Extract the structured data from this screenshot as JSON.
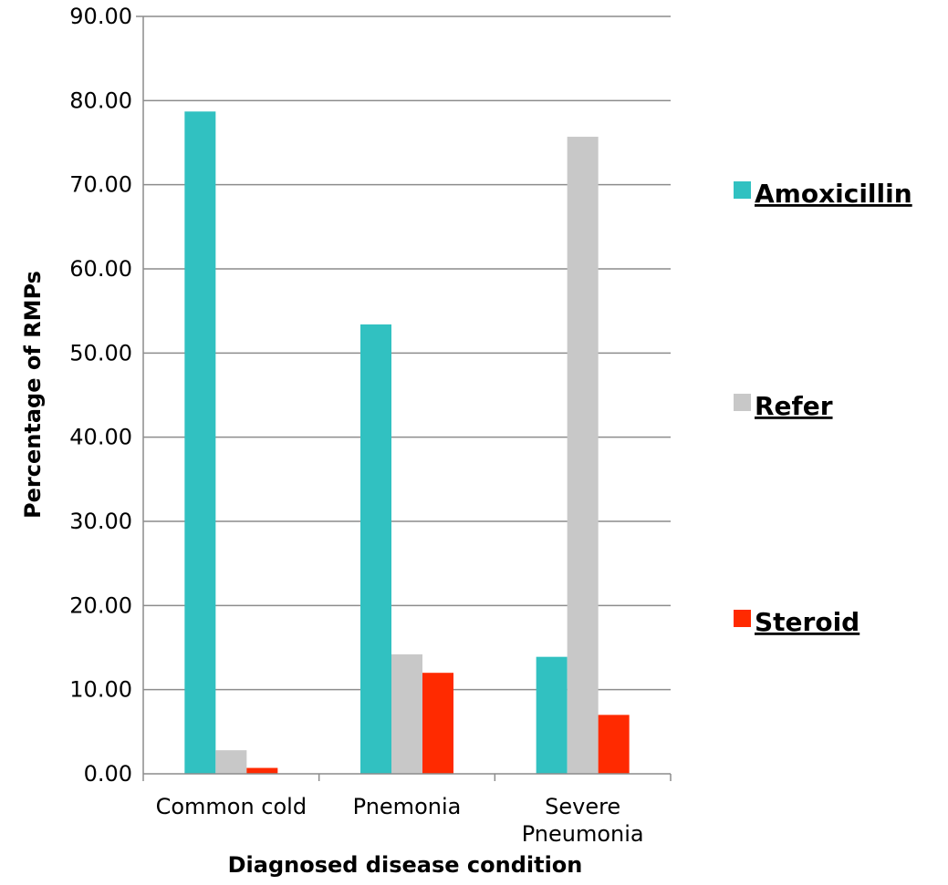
{
  "chart_data": {
    "type": "bar",
    "title": "",
    "xlabel": "Diagnosed disease condition",
    "ylabel": "Percentage of RMPs",
    "ylim": [
      0,
      90
    ],
    "yticks": [
      "0.00",
      "10.00",
      "20.00",
      "30.00",
      "40.00",
      "50.00",
      "60.00",
      "70.00",
      "80.00",
      "90.00"
    ],
    "categories": [
      [
        "Common cold"
      ],
      [
        "Pnemonia"
      ],
      [
        "Severe",
        "Pneumonia"
      ]
    ],
    "grid": true,
    "legend_position": "right",
    "series": [
      {
        "name": "Amoxicillin",
        "color": "#31c1c1",
        "values": [
          78.7,
          53.4,
          13.9
        ]
      },
      {
        "name": "Refer",
        "color": "#c8c8c8",
        "values": [
          2.8,
          14.2,
          75.7
        ]
      },
      {
        "name": "Steroid",
        "color": "#ff2a00",
        "values": [
          0.7,
          12.0,
          7.0
        ]
      }
    ]
  }
}
